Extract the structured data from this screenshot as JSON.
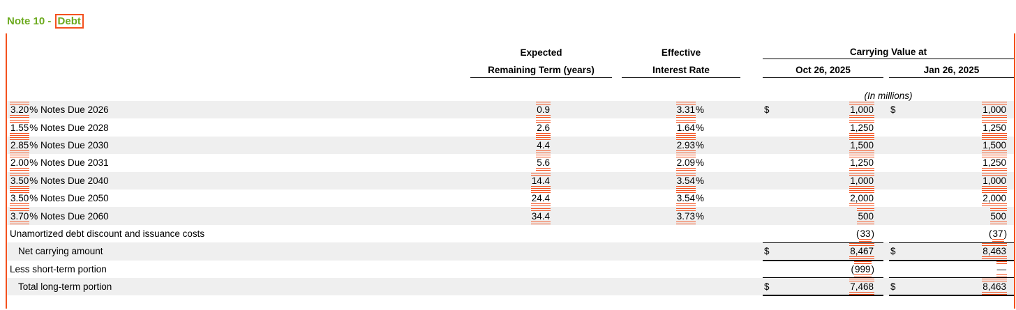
{
  "title": {
    "prefix": "Note 10 - ",
    "highlight": "Debt"
  },
  "colors": {
    "tag_orange": "#f4511e",
    "title_green": "#6caa1e",
    "zebra_gray": "#efefef",
    "rule_black": "#000000"
  },
  "table": {
    "headers": {
      "term_line1": "Expected",
      "term_line2": "Remaining Term (years)",
      "rate_line1": "Effective",
      "rate_line2": "Interest Rate",
      "carrying_group": "Carrying Value at",
      "col_oct": "Oct 26, 2025",
      "col_jan": "Jan 26, 2025",
      "units_note": "(In millions)"
    },
    "currency_symbol": "$",
    "rows": [
      {
        "shade": "gray",
        "label": {
          "tag": "3.20",
          "post": "% Notes Due 2026"
        },
        "term": {
          "tag": "0.9"
        },
        "rate": {
          "tag": "3.31",
          "post": "%"
        },
        "oct": {
          "dollar": "$",
          "tag": "1,000",
          "style": "both"
        },
        "jan": {
          "dollar": "$",
          "tag": "1,000",
          "style": "both"
        }
      },
      {
        "shade": "white",
        "label": {
          "tag": "1.55",
          "post": "% Notes Due 2028"
        },
        "term": {
          "tag": "2.6"
        },
        "rate": {
          "tag": "1.64",
          "post": "%"
        },
        "oct": {
          "tag": "1,250",
          "style": "both"
        },
        "jan": {
          "tag": "1,250",
          "style": "both"
        }
      },
      {
        "shade": "gray",
        "label": {
          "tag": "2.85",
          "post": "% Notes Due 2030"
        },
        "term": {
          "tag": "4.4"
        },
        "rate": {
          "tag": "2.93",
          "post": "%"
        },
        "oct": {
          "tag": "1,500",
          "style": "both"
        },
        "jan": {
          "tag": "1,500",
          "style": "both"
        }
      },
      {
        "shade": "white",
        "label": {
          "tag": "2.00",
          "post": "% Notes Due 2031"
        },
        "term": {
          "tag": "5.6"
        },
        "rate": {
          "tag": "2.09",
          "post": "%"
        },
        "oct": {
          "tag": "1,250",
          "style": "both"
        },
        "jan": {
          "tag": "1,250",
          "style": "both"
        }
      },
      {
        "shade": "gray",
        "label": {
          "tag": "3.50",
          "post": "% Notes Due 2040"
        },
        "term": {
          "tag": "14.4"
        },
        "rate": {
          "tag": "3.54",
          "post": "%"
        },
        "oct": {
          "tag": "1,000",
          "style": "both"
        },
        "jan": {
          "tag": "1,000",
          "style": "both"
        }
      },
      {
        "shade": "white",
        "label": {
          "tag": "3.50",
          "post": "% Notes Due 2050"
        },
        "term": {
          "tag": "24.4"
        },
        "rate": {
          "tag": "3.54",
          "post": "%"
        },
        "oct": {
          "tag": "2,000",
          "style": "both"
        },
        "jan": {
          "tag": "2,000",
          "style": "both"
        }
      },
      {
        "shade": "gray",
        "label": {
          "tag": "3.70",
          "post": "% Notes Due 2060"
        },
        "term": {
          "tag": "34.4"
        },
        "rate": {
          "tag": "3.73",
          "post": "%"
        },
        "oct": {
          "tag": "500",
          "style": "both"
        },
        "jan": {
          "tag": "500",
          "style": "both"
        }
      },
      {
        "shade": "white",
        "rule_below": "thin",
        "label": {
          "text": "Unamortized debt discount and issuance costs"
        },
        "oct": {
          "pre": "(",
          "tag": "33",
          "post": ")",
          "style": "bottom"
        },
        "jan": {
          "pre": "(",
          "tag": "37",
          "post": ")",
          "style": "bottom"
        }
      },
      {
        "shade": "gray",
        "rule_below": "thick",
        "label": {
          "text": "Net carrying amount",
          "indent": true
        },
        "oct": {
          "dollar": "$",
          "tag": "8,467",
          "style": "both"
        },
        "jan": {
          "dollar": "$",
          "tag": "8,463",
          "style": "both"
        }
      },
      {
        "shade": "white",
        "rule_below": "thin",
        "label": {
          "text": "Less short-term portion"
        },
        "oct": {
          "pre": "(",
          "tag": "999",
          "post": ")",
          "style": "both"
        },
        "jan": {
          "tag": "—",
          "style": "both"
        }
      },
      {
        "shade": "gray",
        "rule_below": "thick",
        "label": {
          "text": "Total long-term portion",
          "indent": true
        },
        "oct": {
          "dollar": "$",
          "tag": "7,468",
          "style": "both"
        },
        "jan": {
          "dollar": "$",
          "tag": "8,463",
          "style": "both"
        }
      }
    ]
  }
}
